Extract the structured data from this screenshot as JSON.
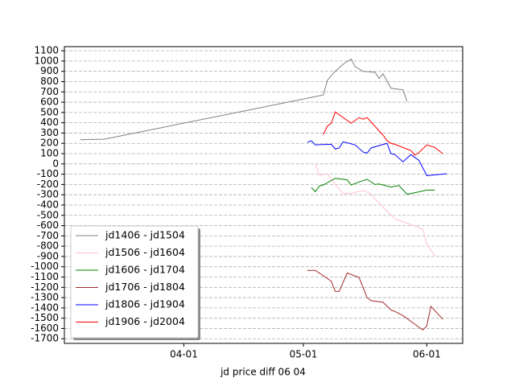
{
  "chart_data": {
    "type": "line",
    "x_label": "jd price diff 06 04",
    "xlim": [
      "03-02",
      "06-10"
    ],
    "xticks": [
      "04-01",
      "05-01",
      "06-01"
    ],
    "ylim": [
      -1745,
      1140
    ],
    "yticks": [
      -1700,
      -1600,
      -1500,
      -1400,
      -1300,
      -1200,
      -1100,
      -1000,
      -900,
      -800,
      -700,
      -600,
      -500,
      -400,
      -300,
      -200,
      -100,
      0,
      100,
      200,
      300,
      400,
      500,
      600,
      700,
      800,
      900,
      1000,
      1100
    ],
    "grid": true,
    "legend": "lower left",
    "series": [
      {
        "name": "jd1406 - jd1504",
        "color": "#808080",
        "x": [
          "03-06",
          "03-12",
          "05-06",
          "05-07",
          "05-08",
          "05-09",
          "05-11",
          "05-13",
          "05-14",
          "05-16",
          "05-19",
          "05-20",
          "05-21",
          "05-23",
          "05-26",
          "05-27"
        ],
        "values": [
          235,
          240,
          670,
          810,
          860,
          900,
          970,
          1020,
          945,
          900,
          890,
          830,
          875,
          735,
          720,
          610
        ]
      },
      {
        "name": "jd1506 - jd1604",
        "color": "#ffc0cb",
        "x": [
          "05-04",
          "05-05",
          "05-07",
          "05-09",
          "05-11",
          "05-13",
          "05-16",
          "05-18",
          "05-19",
          "05-22",
          "05-24",
          "05-28",
          "05-31",
          "06-01",
          "06-03"
        ],
        "values": [
          5,
          -110,
          -95,
          -200,
          -290,
          -285,
          -260,
          -290,
          -340,
          -460,
          -535,
          -590,
          -635,
          -780,
          -895
        ]
      },
      {
        "name": "jd1606 - jd1704",
        "color": "#008000",
        "x": [
          "05-03",
          "05-04",
          "05-05",
          "05-06",
          "05-09",
          "05-11",
          "05-12",
          "05-13",
          "05-15",
          "05-17",
          "05-19",
          "05-20",
          "05-23",
          "05-25",
          "05-27",
          "05-29",
          "06-01",
          "06-03"
        ],
        "values": [
          -230,
          -270,
          -215,
          -205,
          -140,
          -150,
          -155,
          -205,
          -175,
          -150,
          -200,
          -195,
          -225,
          -210,
          -295,
          -280,
          -255,
          -255
        ]
      },
      {
        "name": "jd1706 - jd1804",
        "color": "#a52a2a",
        "x": [
          "05-02",
          "05-04",
          "05-08",
          "05-09",
          "05-10",
          "05-12",
          "05-15",
          "05-17",
          "05-18",
          "05-21",
          "05-23",
          "05-24",
          "05-26",
          "05-31",
          "06-01",
          "06-02",
          "06-05"
        ],
        "values": [
          -1035,
          -1035,
          -1140,
          -1240,
          -1240,
          -1060,
          -1105,
          -1300,
          -1330,
          -1345,
          -1420,
          -1435,
          -1475,
          -1615,
          -1575,
          -1385,
          -1510
        ]
      },
      {
        "name": "jd1806 - jd1904",
        "color": "#0000ff",
        "x": [
          "05-02",
          "05-03",
          "05-04",
          "05-07",
          "05-08",
          "05-09",
          "05-10",
          "05-11",
          "05-14",
          "05-16",
          "05-17",
          "05-18",
          "05-22",
          "05-23",
          "05-24",
          "05-26",
          "05-28",
          "05-30",
          "06-01",
          "06-06"
        ],
        "values": [
          210,
          225,
          185,
          190,
          190,
          145,
          155,
          215,
          185,
          115,
          105,
          155,
          200,
          100,
          90,
          20,
          90,
          35,
          -115,
          -95
        ]
      },
      {
        "name": "jd1906 - jd2004",
        "color": "#ff0000",
        "x": [
          "05-06",
          "05-07",
          "05-08",
          "05-09",
          "05-13",
          "05-15",
          "05-16",
          "05-17",
          "05-19",
          "05-21",
          "05-22",
          "05-23",
          "05-24",
          "05-28",
          "05-29",
          "05-30",
          "06-01",
          "06-03",
          "06-05"
        ],
        "values": [
          285,
          365,
          395,
          505,
          395,
          450,
          435,
          450,
          365,
          280,
          225,
          200,
          190,
          130,
          85,
          110,
          185,
          160,
          100
        ]
      }
    ]
  }
}
